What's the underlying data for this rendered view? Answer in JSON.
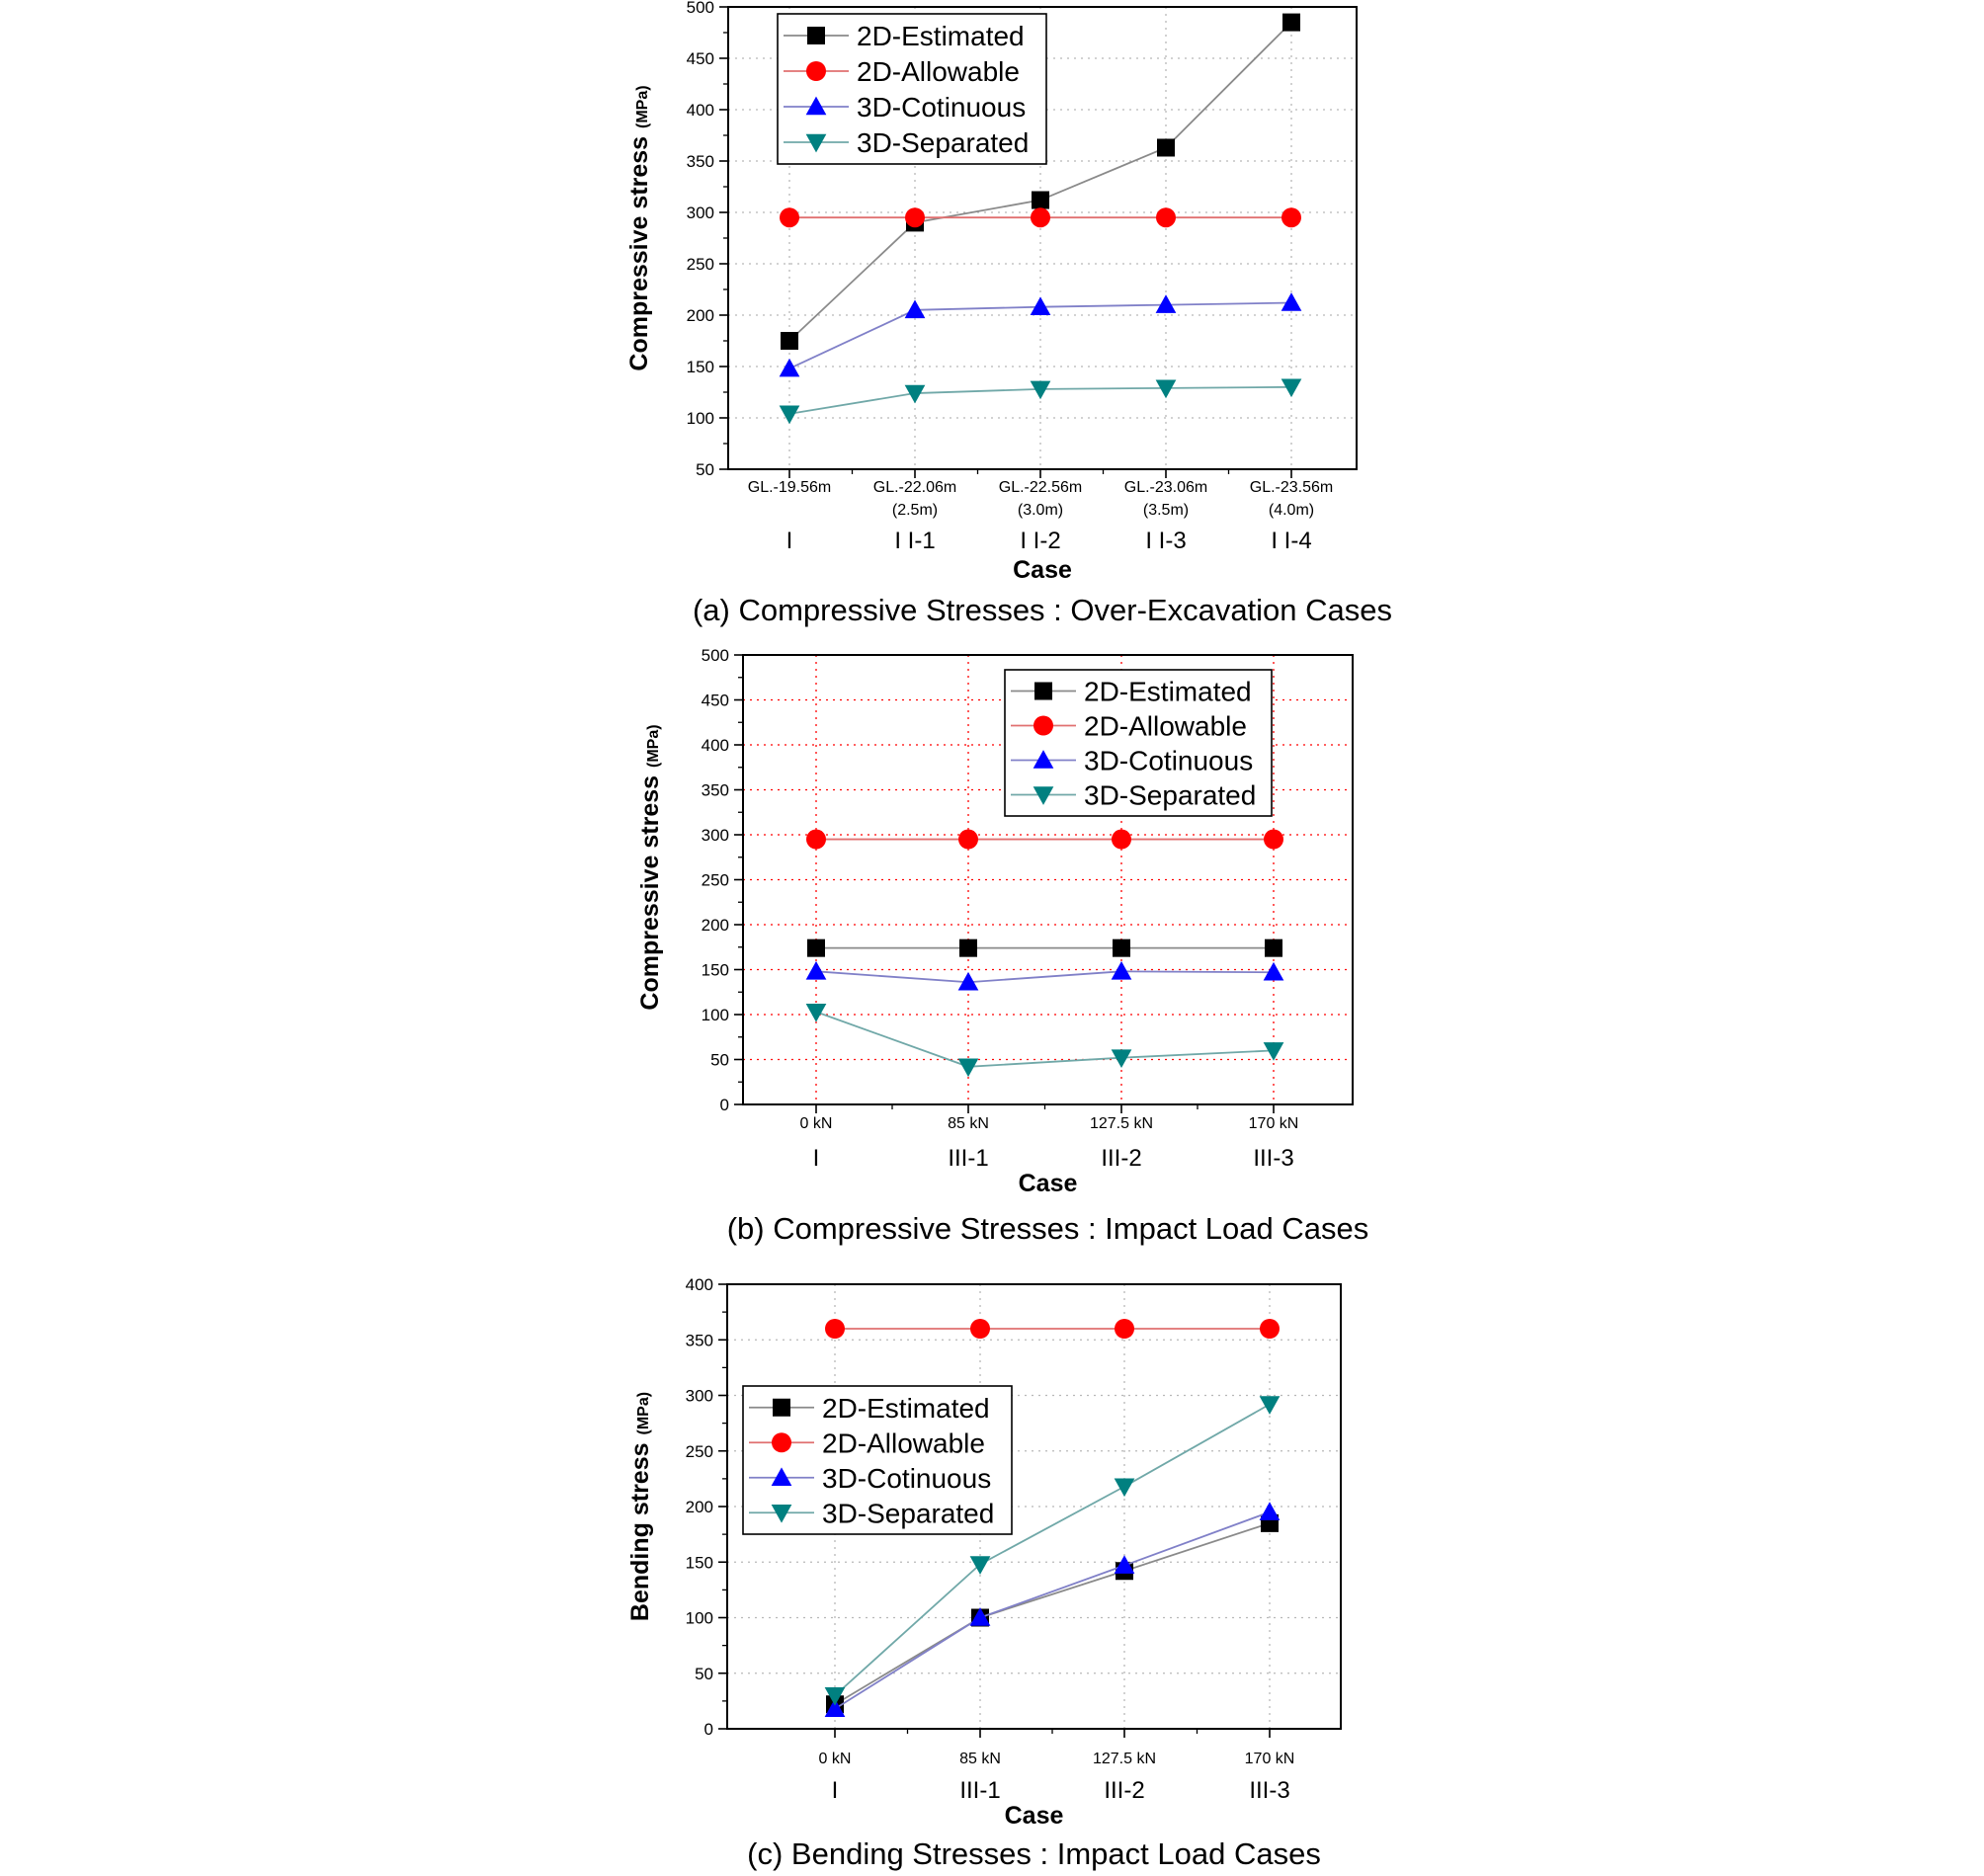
{
  "colors": {
    "estimated": "#000000",
    "allowable": "#ff0000",
    "continuous": "#0000ff",
    "separated": "#008080",
    "grid_gray": "#b8b8b8",
    "grid_red": "#ff0000"
  },
  "chart_data": [
    {
      "type": "line",
      "caption": "(a) Compressive Stresses : Over-Excavation Cases",
      "ylabel": "Compressive stress",
      "ylabel_unit": "(MPa)",
      "xlabel": "Case",
      "ylim": [
        50,
        500
      ],
      "yticks": [
        50,
        100,
        150,
        200,
        250,
        300,
        350,
        400,
        450,
        500
      ],
      "grid": "dotted gray",
      "legend_position": "top-left",
      "categories": [
        {
          "sub": [
            "GL.-19.56m"
          ],
          "case": "I"
        },
        {
          "sub": [
            "GL.-22.06m",
            "(2.5m)"
          ],
          "case": "I I-1"
        },
        {
          "sub": [
            "GL.-22.56m",
            "(3.0m)"
          ],
          "case": "I I-2"
        },
        {
          "sub": [
            "GL.-23.06m",
            "(3.5m)"
          ],
          "case": "I I-3"
        },
        {
          "sub": [
            "GL.-23.56m",
            "(4.0m)"
          ],
          "case": "I I-4"
        }
      ],
      "series": [
        {
          "name": "2D-Estimated",
          "marker": "square",
          "color": "#000000",
          "line": "#8a8a8a",
          "values": [
            175,
            290,
            312,
            363,
            485
          ]
        },
        {
          "name": "2D-Allowable",
          "marker": "circle",
          "color": "#ff0000",
          "line": "#e07070",
          "values": [
            295,
            295,
            295,
            295,
            295
          ]
        },
        {
          "name": "3D-Cotinuous",
          "marker": "triangle-up",
          "color": "#0000ff",
          "line": "#8080c8",
          "values": [
            148,
            205,
            208,
            210,
            212
          ]
        },
        {
          "name": "3D-Separated",
          "marker": "triangle-down",
          "color": "#008080",
          "line": "#70a8a8",
          "values": [
            104,
            124,
            128,
            129,
            130
          ]
        }
      ]
    },
    {
      "type": "line",
      "caption": "(b) Compressive Stresses : Impact Load Cases",
      "ylabel": "Compressive stress",
      "ylabel_unit": "(MPa)",
      "xlabel": "Case",
      "ylim": [
        0,
        500
      ],
      "yticks": [
        0,
        50,
        100,
        150,
        200,
        250,
        300,
        350,
        400,
        450,
        500
      ],
      "grid": "dotted red",
      "legend_position": "top-right",
      "categories": [
        {
          "sub": [
            "0 kN"
          ],
          "case": "I"
        },
        {
          "sub": [
            "85 kN"
          ],
          "case": "III-1"
        },
        {
          "sub": [
            "127.5 kN"
          ],
          "case": "III-2"
        },
        {
          "sub": [
            "170 kN"
          ],
          "case": "III-3"
        }
      ],
      "series": [
        {
          "name": "2D-Estimated",
          "marker": "square",
          "color": "#000000",
          "line": "#8a8a8a",
          "values": [
            174,
            174,
            174,
            174
          ]
        },
        {
          "name": "2D-Allowable",
          "marker": "circle",
          "color": "#ff0000",
          "line": "#e07070",
          "values": [
            295,
            295,
            295,
            295
          ]
        },
        {
          "name": "3D-Cotinuous",
          "marker": "triangle-up",
          "color": "#0000ff",
          "line": "#8080c8",
          "values": [
            148,
            136,
            148,
            147
          ]
        },
        {
          "name": "3D-Separated",
          "marker": "triangle-down",
          "color": "#008080",
          "line": "#70a8a8",
          "values": [
            103,
            42,
            52,
            60
          ]
        }
      ]
    },
    {
      "type": "line",
      "caption": "(c) Bending Stresses : Impact Load Cases",
      "ylabel": "Bending stress",
      "ylabel_unit": "(MPa)",
      "xlabel": "Case",
      "ylim": [
        0,
        400
      ],
      "yticks": [
        0,
        50,
        100,
        150,
        200,
        250,
        300,
        350,
        400
      ],
      "grid": "dotted gray",
      "legend_position": "center-left",
      "categories": [
        {
          "sub": [
            "0 kN"
          ],
          "case": "I"
        },
        {
          "sub": [
            "85 kN"
          ],
          "case": "III-1"
        },
        {
          "sub": [
            "127.5 kN"
          ],
          "case": "III-2"
        },
        {
          "sub": [
            "170 kN"
          ],
          "case": "III-3"
        }
      ],
      "series": [
        {
          "name": "2D-Estimated",
          "marker": "square",
          "color": "#000000",
          "line": "#8a8a8a",
          "values": [
            22,
            100,
            142,
            185
          ]
        },
        {
          "name": "2D-Allowable",
          "marker": "circle",
          "color": "#ff0000",
          "line": "#e07070",
          "values": [
            360,
            360,
            360,
            360
          ]
        },
        {
          "name": "3D-Cotinuous",
          "marker": "triangle-up",
          "color": "#0000ff",
          "line": "#8080c8",
          "values": [
            18,
            100,
            147,
            195
          ]
        },
        {
          "name": "3D-Separated",
          "marker": "triangle-down",
          "color": "#008080",
          "line": "#70a8a8",
          "values": [
            30,
            148,
            218,
            292
          ]
        }
      ]
    }
  ]
}
